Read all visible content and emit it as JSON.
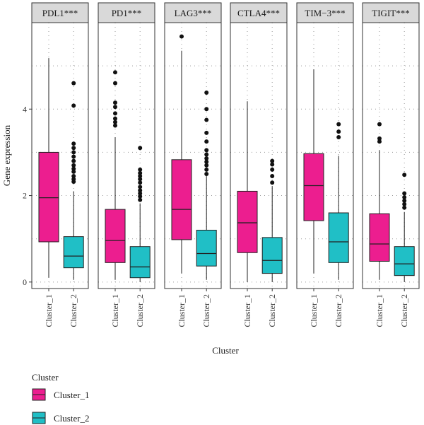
{
  "chart_data": {
    "type": "box",
    "xlabel": "Cluster",
    "ylabel": "Gene expression",
    "ylim": [
      -0.15,
      6.0
    ],
    "yticks": [
      0,
      2,
      4
    ],
    "categories": [
      "Cluster_1",
      "Cluster_2"
    ],
    "grid": "dotted",
    "legend": {
      "title": "Cluster",
      "position": "bottom-left",
      "entries": [
        "Cluster_1",
        "Cluster_2"
      ]
    },
    "colors": {
      "Cluster_1": "#EC1E8F",
      "Cluster_2": "#20BFC6"
    },
    "facets": [
      {
        "label": "PDL1***",
        "boxes": [
          {
            "group": "Cluster_1",
            "min": 0.1,
            "q1": 0.93,
            "median": 1.95,
            "q3": 3.0,
            "max": 5.18,
            "outliers": []
          },
          {
            "group": "Cluster_2",
            "min": 0.05,
            "q1": 0.33,
            "median": 0.6,
            "q3": 1.05,
            "max": 2.1,
            "outliers": [
              2.32,
              2.38,
              2.45,
              2.55,
              2.62,
              2.7,
              2.8,
              2.9,
              3.0,
              3.1,
              3.2,
              4.08,
              4.6
            ]
          }
        ]
      },
      {
        "label": "PD1***",
        "boxes": [
          {
            "group": "Cluster_1",
            "min": 0.05,
            "q1": 0.45,
            "median": 0.96,
            "q3": 1.68,
            "max": 3.35,
            "outliers": [
              3.62,
              3.7,
              3.78,
              3.9,
              4.05,
              4.15,
              4.6,
              4.85
            ]
          },
          {
            "group": "Cluster_2",
            "min": 0.0,
            "q1": 0.1,
            "median": 0.35,
            "q3": 0.82,
            "max": 1.82,
            "outliers": [
              1.9,
              1.98,
              2.05,
              2.12,
              2.2,
              2.3,
              2.38,
              2.45,
              2.52,
              2.6,
              3.1
            ]
          }
        ]
      },
      {
        "label": "LAG3***",
        "boxes": [
          {
            "group": "Cluster_1",
            "min": 0.2,
            "q1": 0.98,
            "median": 1.68,
            "q3": 2.83,
            "max": 5.35,
            "outliers": [
              5.68
            ]
          },
          {
            "group": "Cluster_2",
            "min": 0.05,
            "q1": 0.37,
            "median": 0.66,
            "q3": 1.2,
            "max": 2.45,
            "outliers": [
              2.5,
              2.6,
              2.7,
              2.78,
              2.86,
              2.95,
              3.05,
              3.25,
              3.45,
              3.75,
              4.0,
              4.38
            ]
          }
        ]
      },
      {
        "label": "CTLA4***",
        "boxes": [
          {
            "group": "Cluster_1",
            "min": 0.0,
            "q1": 0.68,
            "median": 1.37,
            "q3": 2.1,
            "max": 4.18,
            "outliers": []
          },
          {
            "group": "Cluster_2",
            "min": 0.0,
            "q1": 0.2,
            "median": 0.5,
            "q3": 1.03,
            "max": 2.22,
            "outliers": [
              2.3,
              2.45,
              2.6,
              2.72,
              2.8
            ]
          }
        ]
      },
      {
        "label": "TIM−3***",
        "boxes": [
          {
            "group": "Cluster_1",
            "min": 0.2,
            "q1": 1.42,
            "median": 2.23,
            "q3": 2.97,
            "max": 4.92,
            "outliers": []
          },
          {
            "group": "Cluster_2",
            "min": 0.05,
            "q1": 0.45,
            "median": 0.93,
            "q3": 1.6,
            "max": 2.92,
            "outliers": [
              3.35,
              3.48,
              3.65
            ]
          }
        ]
      },
      {
        "label": "TIGIT***",
        "boxes": [
          {
            "group": "Cluster_1",
            "min": 0.05,
            "q1": 0.48,
            "median": 0.88,
            "q3": 1.58,
            "max": 3.05,
            "outliers": [
              3.25,
              3.32,
              3.65
            ]
          },
          {
            "group": "Cluster_2",
            "min": 0.0,
            "q1": 0.15,
            "median": 0.42,
            "q3": 0.82,
            "max": 1.62,
            "outliers": [
              1.72,
              1.8,
              1.88,
              1.96,
              2.05,
              2.48
            ]
          }
        ]
      }
    ]
  }
}
